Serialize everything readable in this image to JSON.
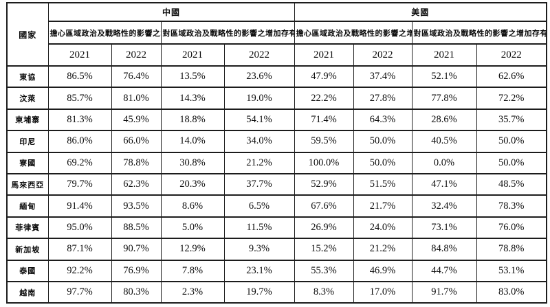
{
  "chart_data": {
    "type": "table",
    "title": "",
    "country_header": "國家",
    "groups": [
      {
        "label": "中國",
        "sub": [
          "擔心區域政治及戰略性的影響之增加",
          "對區域政治及戰略性的影響之增加存有好感"
        ]
      },
      {
        "label": "美國",
        "sub": [
          "擔心區域政治及戰略性的影響之增加",
          "對區域政治及戰略性的影響之增加存有好感"
        ]
      }
    ],
    "years": [
      "2021",
      "2022",
      "2021",
      "2022",
      "2021",
      "2022",
      "2021",
      "2022"
    ],
    "rows": [
      {
        "country": "東協",
        "values": [
          "86.5%",
          "76.4%",
          "13.5%",
          "23.6%",
          "47.9%",
          "37.4%",
          "52.1%",
          "62.6%"
        ]
      },
      {
        "country": "汶萊",
        "values": [
          "85.7%",
          "81.0%",
          "14.3%",
          "19.0%",
          "22.2%",
          "27.8%",
          "77.8%",
          "72.2%"
        ]
      },
      {
        "country": "柬埔寨",
        "values": [
          "81.3%",
          "45.9%",
          "18.8%",
          "54.1%",
          "71.4%",
          "64.3%",
          "28.6%",
          "35.7%"
        ]
      },
      {
        "country": "印尼",
        "values": [
          "86.0%",
          "66.0%",
          "14.0%",
          "34.0%",
          "59.5%",
          "50.0%",
          "40.5%",
          "50.0%"
        ]
      },
      {
        "country": "寮國",
        "values": [
          "69.2%",
          "78.8%",
          "30.8%",
          "21.2%",
          "100.0%",
          "50.0%",
          "0.0%",
          "50.0%"
        ]
      },
      {
        "country": "馬來西亞",
        "values": [
          "79.7%",
          "62.3%",
          "20.3%",
          "37.7%",
          "52.9%",
          "51.5%",
          "47.1%",
          "48.5%"
        ]
      },
      {
        "country": "緬甸",
        "values": [
          "91.4%",
          "93.5%",
          "8.6%",
          "6.5%",
          "67.6%",
          "21.7%",
          "32.4%",
          "78.3%"
        ]
      },
      {
        "country": "菲律賓",
        "values": [
          "95.0%",
          "88.5%",
          "5.0%",
          "11.5%",
          "26.9%",
          "24.0%",
          "73.1%",
          "76.0%"
        ]
      },
      {
        "country": "新加坡",
        "values": [
          "87.1%",
          "90.7%",
          "12.9%",
          "9.3%",
          "15.2%",
          "21.2%",
          "84.8%",
          "78.8%"
        ]
      },
      {
        "country": "泰國",
        "values": [
          "92.2%",
          "76.9%",
          "7.8%",
          "23.1%",
          "55.3%",
          "46.9%",
          "44.7%",
          "53.1%"
        ]
      },
      {
        "country": "越南",
        "values": [
          "97.7%",
          "80.3%",
          "2.3%",
          "19.7%",
          "8.3%",
          "17.0%",
          "91.7%",
          "83.0%"
        ]
      }
    ]
  }
}
